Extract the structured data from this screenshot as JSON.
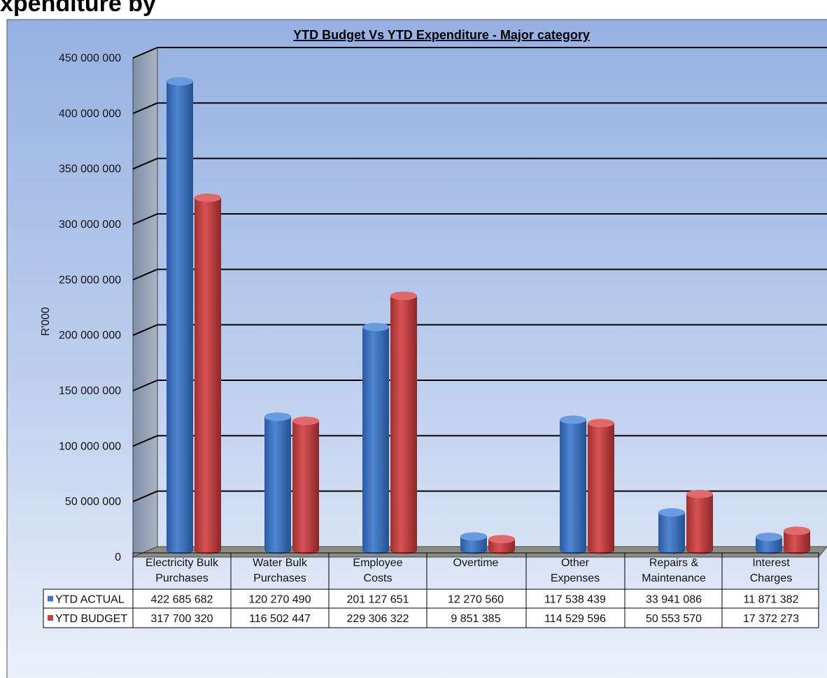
{
  "page_heading": "xpenditure by",
  "chart_data": {
    "type": "bar",
    "title": "YTD Budget Vs YTD  Expenditure - Major category",
    "ylabel": "R'000",
    "xlabel": "",
    "ylim": [
      0,
      450000000
    ],
    "y_tick_labels": [
      "0",
      "50 000 000",
      "100 000 000",
      "150 000 000",
      "200 000 000",
      "250 000 000",
      "300 000 000",
      "350 000 000",
      "400 000 000",
      "450 000 000"
    ],
    "categories": [
      [
        "Electricity Bulk",
        "Purchases"
      ],
      [
        "Water Bulk",
        "Purchases"
      ],
      [
        "Employee",
        "Costs"
      ],
      [
        "Overtime"
      ],
      [
        "Other",
        "Expenses"
      ],
      [
        "Repairs &",
        "Maintenance"
      ],
      [
        "Interest",
        "Charges"
      ]
    ],
    "series": [
      {
        "name": "YTD ACTUAL",
        "color": "#3f75c2",
        "values": [
          422685682,
          120270490,
          201127651,
          12270560,
          117538439,
          33941086,
          11871382
        ],
        "labels": [
          "422 685 682",
          "120 270 490",
          "201 127 651",
          "12 270 560",
          "117 538 439",
          "33 941 086",
          "11 871 382"
        ]
      },
      {
        "name": "YTD BUDGET",
        "color": "#c94344",
        "values": [
          317700320,
          116502447,
          229306322,
          9851385,
          114529596,
          50553570,
          17372273
        ],
        "labels": [
          "317 700 320",
          "116 502 447",
          "229 306 322",
          "9 851 385",
          "114 529 596",
          "50 553 570",
          "17 372 273"
        ]
      }
    ],
    "legend": "data-table",
    "grid": true,
    "bar_shape": "cylinder-3d"
  }
}
